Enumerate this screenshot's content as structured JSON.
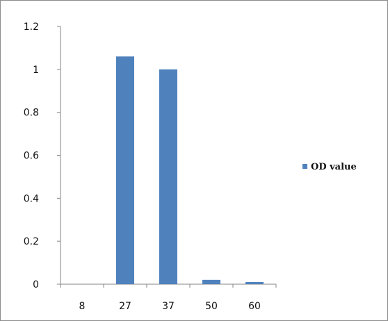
{
  "chart_data": {
    "type": "bar",
    "categories": [
      "8",
      "27",
      "37",
      "50",
      "60"
    ],
    "series": [
      {
        "name": "OD value",
        "values": [
          0,
          1.06,
          1.0,
          0.02,
          0.01
        ],
        "color": "#4f81bd"
      }
    ],
    "ylim": [
      0,
      1.2
    ],
    "yticks": [
      0,
      0.2,
      0.4,
      0.6,
      0.8,
      1,
      1.2
    ],
    "ytick_labels": [
      "0",
      "0.2",
      "0.4",
      "0.6",
      "0.8",
      "1",
      "1.2"
    ],
    "grid": false,
    "legend": {
      "position": "right"
    }
  }
}
